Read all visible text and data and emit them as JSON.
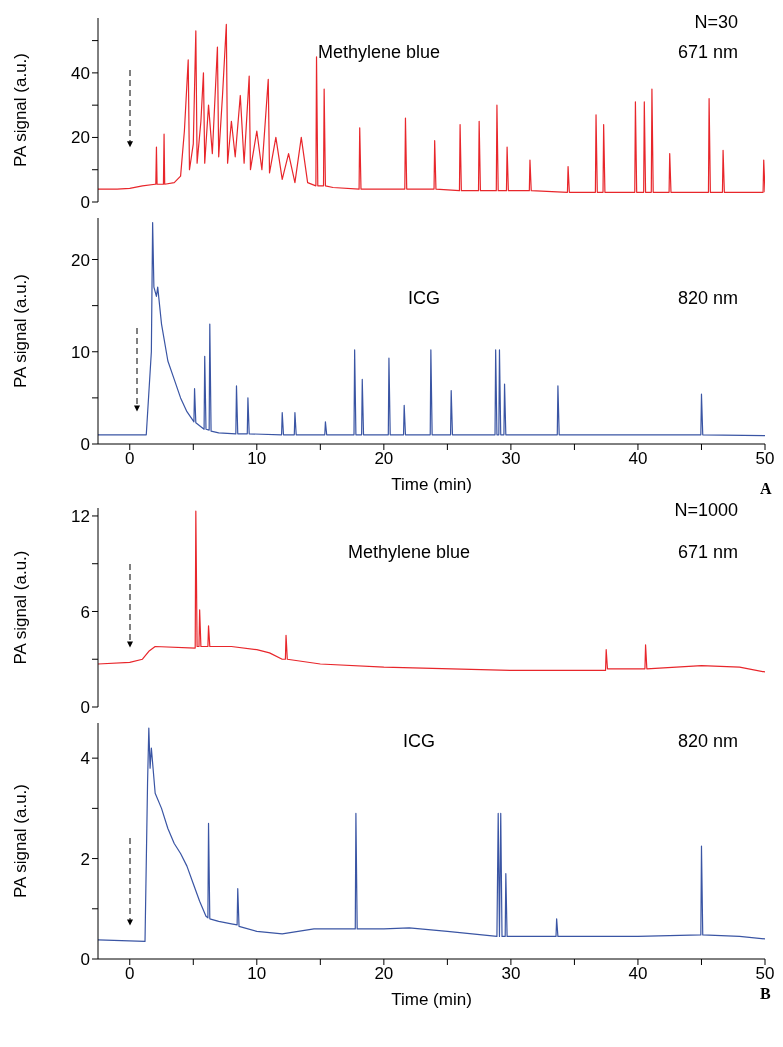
{
  "chart_data": [
    {
      "type": "line",
      "ylabel": "PA signal (a.u.)",
      "annotations": [
        "N=30",
        "Methylene blue",
        "671 nm"
      ],
      "tick_labels": "y",
      "xlim": [
        -2.5,
        50
      ],
      "ylim": [
        0,
        57
      ],
      "yticks": [
        0,
        {
          "value": 10,
          "label": null
        },
        20,
        {
          "value": 30,
          "label": null
        },
        40,
        {
          "value": 50,
          "label": null
        }
      ],
      "series": [
        {
          "color": "#e8262b",
          "x": [
            -2.5,
            -1,
            0,
            1,
            2,
            2.05,
            2.1,
            2.15,
            2.65,
            2.7,
            2.75,
            3.5,
            4,
            4.3,
            4.6,
            4.7,
            5,
            5.2,
            5.3,
            5.6,
            5.8,
            5.9,
            6.2,
            6.5,
            6.9,
            7,
            7.3,
            7.6,
            7.7,
            8,
            8.3,
            8.7,
            9,
            9.4,
            9.5,
            10,
            10.4,
            10.9,
            11,
            11.5,
            12,
            12.5,
            13,
            13.5,
            14,
            14.65,
            14.7,
            14.8,
            15.25,
            15.3,
            15.4,
            16,
            18.05,
            18.1,
            18.2,
            20,
            21.65,
            21.7,
            21.8,
            23.95,
            24,
            24.1,
            25.95,
            26,
            26.1,
            27.45,
            27.5,
            27.6,
            28.85,
            28.9,
            29,
            29.65,
            29.7,
            29.8,
            31.45,
            31.5,
            31.6,
            34.45,
            34.5,
            34.6,
            36.65,
            36.7,
            36.8,
            37.25,
            37.3,
            37.4,
            39.75,
            39.8,
            39.9,
            40.45,
            40.5,
            40.6,
            41.05,
            41.1,
            41.2,
            42.45,
            42.5,
            42.6,
            45.55,
            45.6,
            45.7,
            46.65,
            46.7,
            46.8,
            49,
            49.85,
            49.9,
            50
          ],
          "values": [
            4,
            4,
            4.2,
            5,
            5.5,
            5.5,
            17,
            5.5,
            5.5,
            21,
            5.5,
            6,
            8,
            22,
            44,
            10,
            18,
            53,
            12,
            25,
            40,
            12,
            30,
            15,
            48,
            14,
            33,
            55,
            12,
            25,
            14,
            33,
            12,
            39,
            10,
            22,
            10,
            38,
            9,
            20,
            7,
            15,
            6,
            20,
            6,
            5,
            45,
            5,
            5,
            35,
            5,
            4.5,
            4,
            23,
            4,
            4,
            4,
            26,
            4,
            4,
            19,
            4,
            3.5,
            24,
            3.5,
            3.5,
            25,
            3.5,
            3.5,
            30,
            3.5,
            3.5,
            17,
            3.5,
            3.5,
            13,
            3.5,
            3,
            11,
            3,
            3,
            27,
            3,
            3,
            24,
            3,
            3,
            31,
            3,
            3,
            31,
            3,
            3,
            35,
            3,
            3,
            15,
            3,
            3,
            32,
            3,
            3,
            16,
            3,
            3,
            3,
            13,
            3
          ]
        }
      ]
    },
    {
      "type": "line",
      "ylabel": "PA signal (a.u.)",
      "xlabel": "Time (min)",
      "annotations": [
        "ICG",
        "820 nm",
        "A"
      ],
      "xlim": [
        -2.5,
        50
      ],
      "xticks": [
        0,
        {
          "value": 5,
          "label": null
        },
        10,
        {
          "value": 15,
          "label": null
        },
        20,
        {
          "value": 25,
          "label": null
        },
        30,
        {
          "value": 35,
          "label": null
        },
        40,
        {
          "value": 45,
          "label": null
        },
        50
      ],
      "ylim": [
        0,
        24.5
      ],
      "yticks": [
        0,
        {
          "value": 5,
          "label": null
        },
        10,
        {
          "value": 15,
          "label": null
        },
        20
      ],
      "series": [
        {
          "color": "#3a55a4",
          "x": [
            -2.5,
            0,
            1.3,
            1.7,
            1.8,
            1.9,
            2.1,
            2.2,
            2.5,
            3,
            3.5,
            4,
            4.5,
            5,
            5.05,
            5.1,
            5.2,
            5.85,
            5.9,
            6,
            6.25,
            6.3,
            6.4,
            7,
            8.35,
            8.4,
            8.5,
            9.25,
            9.3,
            9.4,
            11.95,
            12,
            12.1,
            12.95,
            13,
            13.1,
            15.35,
            15.4,
            15.5,
            17.65,
            17.7,
            17.8,
            18.25,
            18.3,
            18.4,
            20.35,
            20.4,
            20.5,
            21.55,
            21.6,
            21.7,
            23.65,
            23.7,
            23.8,
            25.25,
            25.3,
            25.4,
            28.75,
            28.8,
            28.9,
            29.05,
            29.1,
            29.2,
            29.45,
            29.5,
            29.6,
            33.65,
            33.7,
            33.8,
            44.95,
            45,
            45.1,
            50
          ],
          "values": [
            1,
            1,
            1,
            10,
            24,
            17,
            16,
            17,
            13,
            9,
            7,
            5,
            3.5,
            2.5,
            2.4,
            6,
            2.3,
            1.6,
            9.5,
            1.6,
            1.5,
            13,
            1.4,
            1.2,
            1.1,
            6.3,
            1.1,
            1.1,
            5,
            1.1,
            1,
            3.4,
            1,
            1,
            3.4,
            1,
            1,
            2.4,
            1,
            1,
            10.2,
            1,
            1,
            7,
            1,
            1,
            9.3,
            1,
            1,
            4.2,
            1,
            1,
            10.2,
            1,
            1,
            5.8,
            1,
            1,
            10.2,
            1,
            1,
            10.2,
            1,
            1,
            6.5,
            1,
            1,
            6.3,
            1,
            1,
            5.4,
            1,
            0.9
          ]
        }
      ]
    },
    {
      "type": "line",
      "ylabel": "PA signal (a.u.)",
      "annotations": [
        "N=1000",
        "Methylene blue",
        "671 nm"
      ],
      "tick_labels": "y",
      "xlim": [
        -2.5,
        50
      ],
      "ylim": [
        0,
        12.5
      ],
      "yticks": [
        0,
        {
          "value": 3,
          "label": null
        },
        6,
        {
          "value": 9,
          "label": null
        },
        12
      ],
      "series": [
        {
          "color": "#e8262b",
          "x": [
            -2.5,
            0,
            1,
            1.5,
            2,
            5.15,
            5.2,
            5.3,
            5.45,
            5.5,
            5.6,
            6.15,
            6.2,
            6.3,
            8,
            10,
            11,
            12,
            12.25,
            12.3,
            12.4,
            15,
            20,
            30,
            37.45,
            37.5,
            37.6,
            40.55,
            40.6,
            40.7,
            45,
            48,
            50
          ],
          "values": [
            2.7,
            2.8,
            3,
            3.5,
            3.8,
            3.7,
            12.3,
            3.8,
            3.8,
            6.1,
            3.8,
            3.8,
            5.1,
            3.8,
            3.8,
            3.6,
            3.4,
            3,
            3,
            4.5,
            3,
            2.7,
            2.5,
            2.3,
            2.3,
            3.6,
            2.4,
            2.4,
            3.9,
            2.4,
            2.6,
            2.5,
            2.2
          ]
        }
      ]
    },
    {
      "type": "line",
      "ylabel": "PA signal (a.u.)",
      "xlabel": "Time (min)",
      "annotations": [
        "ICG",
        "820 nm",
        "B"
      ],
      "xlim": [
        -2.5,
        50
      ],
      "xticks": [
        0,
        {
          "value": 5,
          "label": null
        },
        10,
        {
          "value": 15,
          "label": null
        },
        20,
        {
          "value": 25,
          "label": null
        },
        30,
        {
          "value": 35,
          "label": null
        },
        40,
        {
          "value": 45,
          "label": null
        },
        50
      ],
      "ylim": [
        0,
        4.7
      ],
      "yticks": [
        0,
        {
          "value": 1,
          "label": null
        },
        2,
        {
          "value": 3,
          "label": null
        },
        4
      ],
      "series": [
        {
          "color": "#3a55a4",
          "x": [
            -2.5,
            1.2,
            1.4,
            1.5,
            1.6,
            1.7,
            2,
            2.5,
            3,
            3.5,
            4,
            4.5,
            5,
            5.5,
            6,
            6.15,
            6.2,
            6.3,
            7,
            8,
            8.45,
            8.5,
            8.6,
            10,
            12,
            14.5,
            17.75,
            17.8,
            17.9,
            20,
            22,
            25,
            28.9,
            29,
            29.1,
            29.2,
            29.3,
            29.55,
            29.6,
            29.7,
            33.55,
            33.6,
            33.7,
            40,
            44.95,
            45,
            45.1,
            48,
            50
          ],
          "values": [
            0.38,
            0.35,
            3.5,
            4.6,
            3.8,
            4.2,
            3.3,
            3,
            2.6,
            2.3,
            2.1,
            1.85,
            1.5,
            1.15,
            0.85,
            0.82,
            2.7,
            0.8,
            0.75,
            0.7,
            0.68,
            1.4,
            0.65,
            0.55,
            0.5,
            0.6,
            0.6,
            2.9,
            0.6,
            0.6,
            0.62,
            0.55,
            0.45,
            2.9,
            0.45,
            2.9,
            0.45,
            0.45,
            1.7,
            0.45,
            0.45,
            0.8,
            0.45,
            0.45,
            0.48,
            2.25,
            0.48,
            0.45,
            0.4
          ]
        }
      ]
    }
  ]
}
